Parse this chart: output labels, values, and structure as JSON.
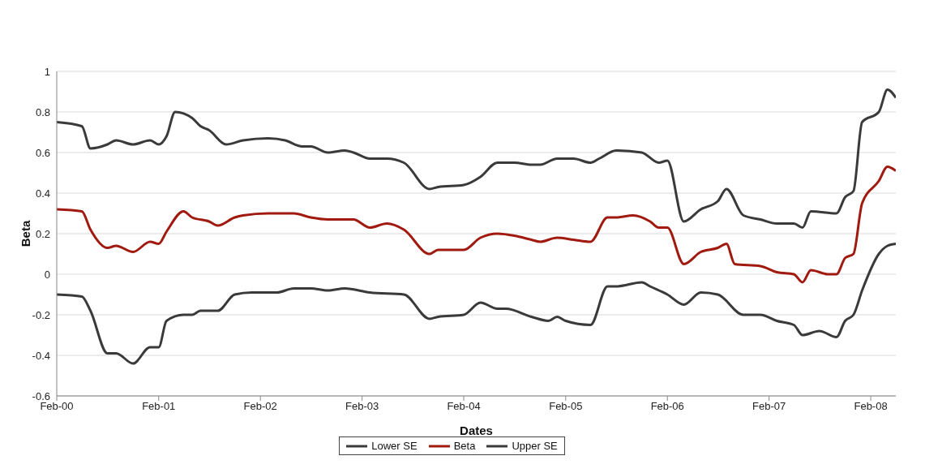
{
  "chart_data": {
    "type": "line",
    "xlabel": "Dates",
    "ylabel": "Beta",
    "xlim": [
      "2000-02",
      "2008-05"
    ],
    "xticks": [
      {
        "value": "2000-02",
        "label": "Feb-00"
      },
      {
        "value": "2001-02",
        "label": "Feb-01"
      },
      {
        "value": "2002-02",
        "label": "Feb-02"
      },
      {
        "value": "2003-02",
        "label": "Feb-03"
      },
      {
        "value": "2004-02",
        "label": "Feb-04"
      },
      {
        "value": "2005-02",
        "label": "Feb-05"
      },
      {
        "value": "2006-02",
        "label": "Feb-06"
      },
      {
        "value": "2007-02",
        "label": "Feb-07"
      },
      {
        "value": "2008-02",
        "label": "Feb-08"
      }
    ],
    "ylim": [
      -0.6,
      1
    ],
    "yticks": [
      -0.6,
      -0.4,
      -0.2,
      0,
      0.2,
      0.4,
      0.6,
      0.8,
      1
    ],
    "grid": "y",
    "legend": "bottom",
    "marker": "none",
    "line_style": "solid",
    "series": [
      {
        "name": "Lower SE",
        "color": "#3a3a3a",
        "x": [
          "2000-02",
          "2000-05",
          "2000-06",
          "2000-08",
          "2000-09",
          "2000-11",
          "2001-01",
          "2001-02",
          "2001-03",
          "2001-05",
          "2001-06",
          "2001-07",
          "2001-09",
          "2001-11",
          "2002-01",
          "2002-04",
          "2002-06",
          "2002-08",
          "2002-10",
          "2002-12",
          "2003-03",
          "2003-07",
          "2003-10",
          "2003-11",
          "2004-02",
          "2004-04",
          "2004-06",
          "2004-07",
          "2004-10",
          "2004-12",
          "2005-01",
          "2005-02",
          "2005-05",
          "2005-07",
          "2005-08",
          "2005-11",
          "2005-12",
          "2006-02",
          "2006-04",
          "2006-06",
          "2006-08",
          "2006-11",
          "2007-01",
          "2007-03",
          "2007-05",
          "2007-06",
          "2007-08",
          "2007-10",
          "2007-11",
          "2007-12",
          "2008-01",
          "2008-03",
          "2008-04",
          "2008-05"
        ],
        "values": [
          -0.1,
          -0.11,
          -0.18,
          -0.39,
          -0.39,
          -0.44,
          -0.36,
          -0.36,
          -0.23,
          -0.2,
          -0.2,
          -0.18,
          -0.18,
          -0.1,
          -0.09,
          -0.09,
          -0.07,
          -0.07,
          -0.08,
          -0.07,
          -0.09,
          -0.1,
          -0.22,
          -0.21,
          -0.2,
          -0.14,
          -0.17,
          -0.17,
          -0.21,
          -0.23,
          -0.21,
          -0.23,
          -0.25,
          -0.06,
          -0.06,
          -0.04,
          -0.06,
          -0.1,
          -0.15,
          -0.09,
          -0.1,
          -0.2,
          -0.2,
          -0.23,
          -0.25,
          -0.3,
          -0.28,
          -0.31,
          -0.23,
          -0.2,
          -0.08,
          0.1,
          0.14,
          0.15
        ]
      },
      {
        "name": "Beta",
        "color": "#a01a10",
        "x": [
          "2000-02",
          "2000-05",
          "2000-06",
          "2000-08",
          "2000-09",
          "2000-11",
          "2001-01",
          "2001-02",
          "2001-03",
          "2001-05",
          "2001-06",
          "2001-08",
          "2001-09",
          "2001-11",
          "2001-12",
          "2002-03",
          "2002-06",
          "2002-08",
          "2002-10",
          "2003-01",
          "2003-03",
          "2003-05",
          "2003-07",
          "2003-10",
          "2003-11",
          "2004-02",
          "2004-04",
          "2004-06",
          "2004-08",
          "2004-10",
          "2004-11",
          "2005-01",
          "2005-03",
          "2005-05",
          "2005-07",
          "2005-08",
          "2005-10",
          "2005-12",
          "2006-01",
          "2006-02",
          "2006-04",
          "2006-06",
          "2006-08",
          "2006-09",
          "2006-10",
          "2007-01",
          "2007-03",
          "2007-05",
          "2007-06",
          "2007-07",
          "2007-09",
          "2007-10",
          "2007-11",
          "2007-12",
          "2008-01",
          "2008-03",
          "2008-04",
          "2008-05"
        ],
        "values": [
          0.32,
          0.31,
          0.22,
          0.13,
          0.14,
          0.11,
          0.16,
          0.15,
          0.21,
          0.31,
          0.28,
          0.26,
          0.24,
          0.28,
          0.29,
          0.3,
          0.3,
          0.28,
          0.27,
          0.27,
          0.23,
          0.25,
          0.22,
          0.1,
          0.12,
          0.12,
          0.18,
          0.2,
          0.19,
          0.17,
          0.16,
          0.18,
          0.17,
          0.16,
          0.28,
          0.28,
          0.29,
          0.26,
          0.23,
          0.23,
          0.05,
          0.11,
          0.13,
          0.15,
          0.05,
          0.04,
          0.01,
          0,
          -0.04,
          0.02,
          0,
          0,
          0.08,
          0.1,
          0.35,
          0.46,
          0.53,
          0.51
        ]
      },
      {
        "name": "Upper SE",
        "color": "#3a3a3a",
        "x": [
          "2000-02",
          "2000-05",
          "2000-06",
          "2000-08",
          "2000-09",
          "2000-11",
          "2001-01",
          "2001-02",
          "2001-03",
          "2001-04",
          "2001-06",
          "2001-07",
          "2001-08",
          "2001-10",
          "2001-12",
          "2002-03",
          "2002-05",
          "2002-07",
          "2002-08",
          "2002-10",
          "2002-12",
          "2003-01",
          "2003-03",
          "2003-05",
          "2003-07",
          "2003-10",
          "2003-11",
          "2004-02",
          "2004-04",
          "2004-06",
          "2004-08",
          "2004-10",
          "2004-11",
          "2005-01",
          "2005-03",
          "2005-05",
          "2005-06",
          "2005-08",
          "2005-11",
          "2006-01",
          "2006-02",
          "2006-04",
          "2006-06",
          "2006-08",
          "2006-09",
          "2006-11",
          "2007-01",
          "2007-03",
          "2007-05",
          "2007-06",
          "2007-07",
          "2007-10",
          "2007-11",
          "2007-12",
          "2008-01",
          "2008-03",
          "2008-04",
          "2008-05"
        ],
        "values": [
          0.75,
          0.73,
          0.62,
          0.64,
          0.66,
          0.64,
          0.66,
          0.64,
          0.68,
          0.8,
          0.77,
          0.73,
          0.71,
          0.64,
          0.66,
          0.67,
          0.66,
          0.63,
          0.63,
          0.6,
          0.61,
          0.6,
          0.57,
          0.57,
          0.55,
          0.42,
          0.43,
          0.44,
          0.48,
          0.55,
          0.55,
          0.54,
          0.54,
          0.57,
          0.57,
          0.55,
          0.57,
          0.61,
          0.6,
          0.55,
          0.56,
          0.26,
          0.32,
          0.36,
          0.42,
          0.29,
          0.27,
          0.25,
          0.25,
          0.23,
          0.31,
          0.3,
          0.38,
          0.41,
          0.75,
          0.8,
          0.91,
          0.87
        ]
      }
    ]
  }
}
